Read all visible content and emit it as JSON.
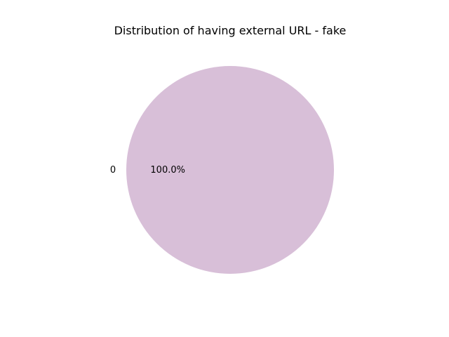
{
  "chart_data": {
    "type": "pie",
    "title": "Distribution of having external URL - fake",
    "labels": [
      "0"
    ],
    "values": [
      100.0
    ],
    "percent_labels": [
      "100.0%"
    ],
    "colors": [
      "#d8bfd8"
    ],
    "legend": "none"
  }
}
